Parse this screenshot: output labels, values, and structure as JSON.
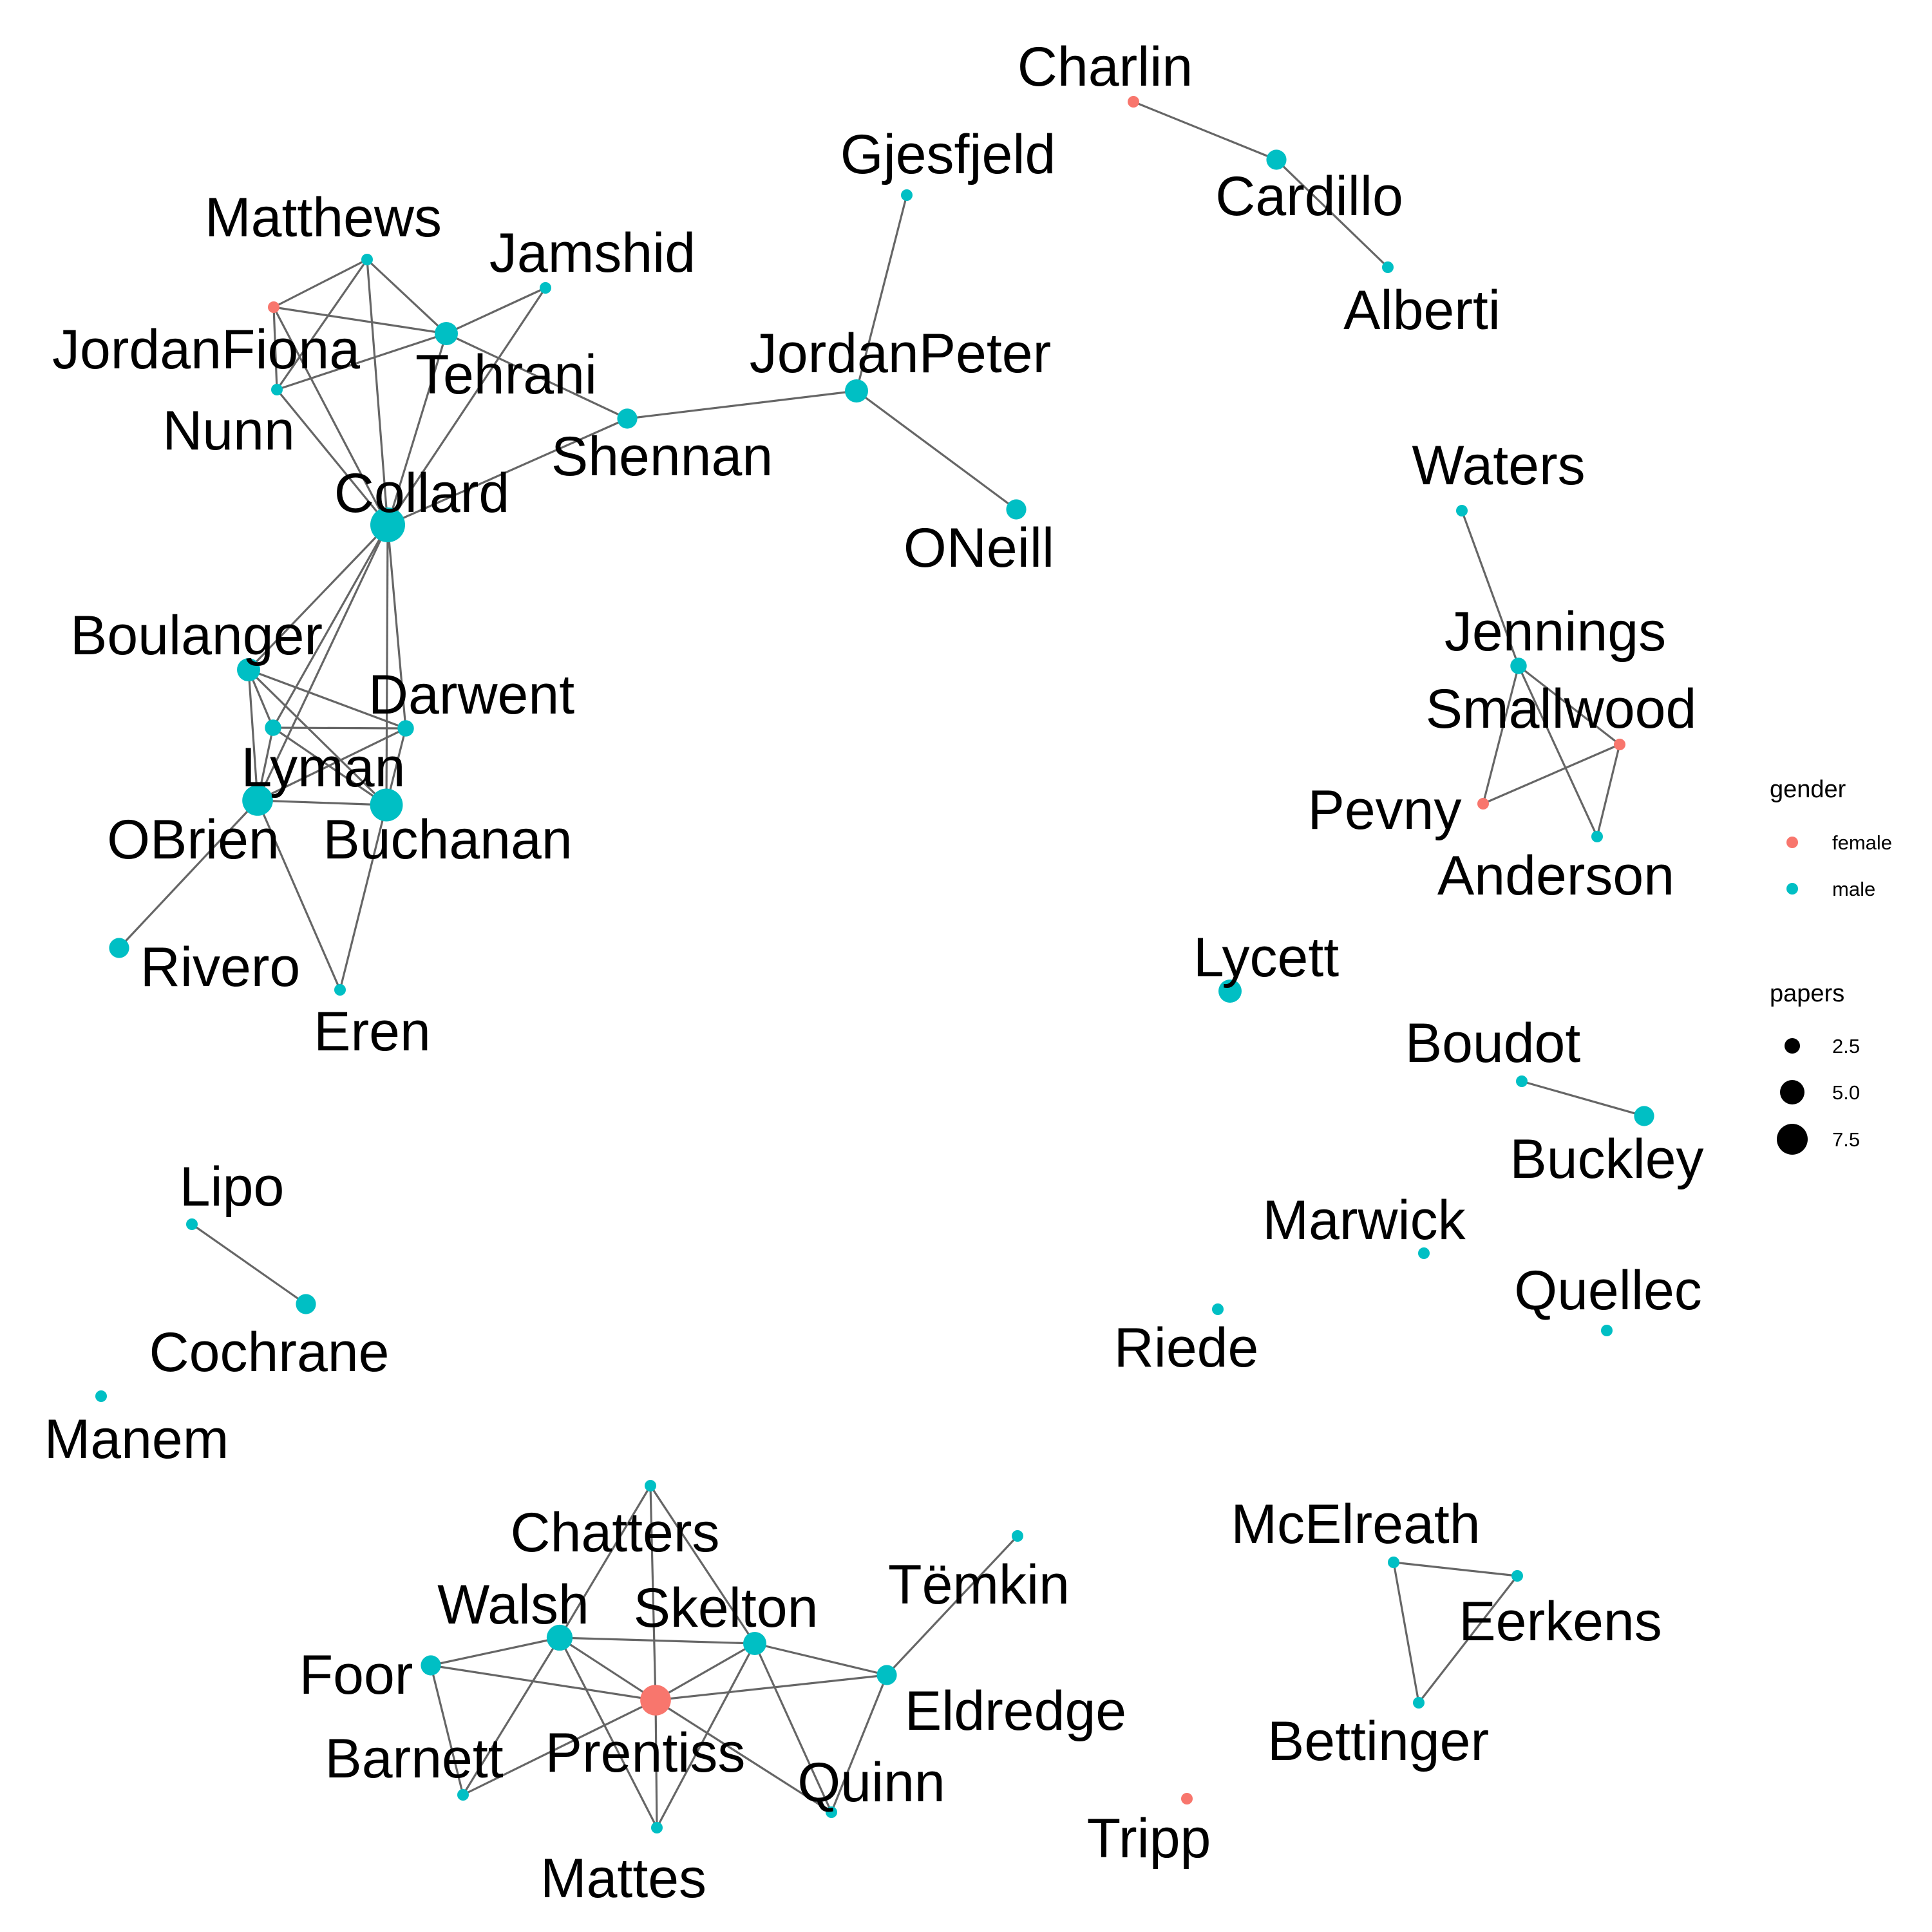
{
  "colors": {
    "female": "#F8766D",
    "male": "#00BFC4",
    "edge": "#666666",
    "size_key": "#000000"
  },
  "nodes": [
    {
      "id": "Charlin",
      "label": "Charlin",
      "gender": "female",
      "papers": 1
    },
    {
      "id": "Cardillo",
      "label": "Cardillo",
      "gender": "male",
      "papers": 3
    },
    {
      "id": "Alberti",
      "label": "Alberti",
      "gender": "male",
      "papers": 1
    },
    {
      "id": "Gjesfjeld",
      "label": "Gjesfjeld",
      "gender": "male",
      "papers": 1
    },
    {
      "id": "Matthews",
      "label": "Matthews",
      "gender": "male",
      "papers": 1
    },
    {
      "id": "Jamshid",
      "label": "Jamshid",
      "gender": "male",
      "papers": 1
    },
    {
      "id": "JordanFiona",
      "label": "JordanFiona",
      "gender": "female",
      "papers": 1
    },
    {
      "id": "Tehrani",
      "label": "Tehrani",
      "gender": "male",
      "papers": 4
    },
    {
      "id": "Nunn",
      "label": "Nunn",
      "gender": "male",
      "papers": 1
    },
    {
      "id": "JordanPeter",
      "label": "JordanPeter",
      "gender": "male",
      "papers": 4
    },
    {
      "id": "Shennan",
      "label": "Shennan",
      "gender": "male",
      "papers": 3
    },
    {
      "id": "Collard",
      "label": "Collard",
      "gender": "male",
      "papers": 9
    },
    {
      "id": "ONeill",
      "label": "ONeill",
      "gender": "male",
      "papers": 3
    },
    {
      "id": "Waters",
      "label": "Waters",
      "gender": "male",
      "papers": 1
    },
    {
      "id": "Boulanger",
      "label": "Boulanger",
      "gender": "male",
      "papers": 4
    },
    {
      "id": "Darwent",
      "label": "Darwent",
      "gender": "male",
      "papers": 2
    },
    {
      "id": "Lyman",
      "label": "Lyman",
      "gender": "male",
      "papers": 2
    },
    {
      "id": "OBrien",
      "label": "OBrien",
      "gender": "male",
      "papers": 7
    },
    {
      "id": "Buchanan",
      "label": "Buchanan",
      "gender": "male",
      "papers": 8
    },
    {
      "id": "Jennings",
      "label": "Jennings",
      "gender": "male",
      "papers": 2
    },
    {
      "id": "Smallwood",
      "label": "Smallwood",
      "gender": "female",
      "papers": 1
    },
    {
      "id": "Pevny",
      "label": "Pevny",
      "gender": "female",
      "papers": 1
    },
    {
      "id": "Anderson",
      "label": "Anderson",
      "gender": "male",
      "papers": 1
    },
    {
      "id": "Rivero",
      "label": "Rivero",
      "gender": "male",
      "papers": 3
    },
    {
      "id": "Eren",
      "label": "Eren",
      "gender": "male",
      "papers": 1
    },
    {
      "id": "Lycett",
      "label": "Lycett",
      "gender": "male",
      "papers": 4
    },
    {
      "id": "Boudot",
      "label": "Boudot",
      "gender": "male",
      "papers": 1
    },
    {
      "id": "Buckley",
      "label": "Buckley",
      "gender": "male",
      "papers": 3
    },
    {
      "id": "Lipo",
      "label": "Lipo",
      "gender": "male",
      "papers": 1
    },
    {
      "id": "Marwick",
      "label": "Marwick",
      "gender": "male",
      "papers": 1
    },
    {
      "id": "Cochrane",
      "label": "Cochrane",
      "gender": "male",
      "papers": 3
    },
    {
      "id": "Quellec",
      "label": "Quellec",
      "gender": "male",
      "papers": 1
    },
    {
      "id": "Riede",
      "label": "Riede",
      "gender": "male",
      "papers": 1
    },
    {
      "id": "Manem",
      "label": "Manem",
      "gender": "male",
      "papers": 1
    },
    {
      "id": "Chatters",
      "label": "Chatters",
      "gender": "male",
      "papers": 1
    },
    {
      "id": "McElreath",
      "label": "McElreath",
      "gender": "male",
      "papers": 1
    },
    {
      "id": "Temkin",
      "label": "Tëmkin",
      "gender": "male",
      "papers": 1
    },
    {
      "id": "Eerkens",
      "label": "Eerkens",
      "gender": "male",
      "papers": 1
    },
    {
      "id": "Walsh",
      "label": "Walsh",
      "gender": "male",
      "papers": 5
    },
    {
      "id": "Skelton",
      "label": "Skelton",
      "gender": "male",
      "papers": 4
    },
    {
      "id": "Foor",
      "label": "Foor",
      "gender": "male",
      "papers": 3
    },
    {
      "id": "Eldredge",
      "label": "Eldredge",
      "gender": "male",
      "papers": 3
    },
    {
      "id": "Prentiss",
      "label": "Prentiss",
      "gender": "female",
      "papers": 7
    },
    {
      "id": "Barnett",
      "label": "Barnett",
      "gender": "male",
      "papers": 1
    },
    {
      "id": "Quinn",
      "label": "Quinn",
      "gender": "male",
      "papers": 1
    },
    {
      "id": "Bettinger",
      "label": "Bettinger",
      "gender": "male",
      "papers": 1
    },
    {
      "id": "Tripp",
      "label": "Tripp",
      "gender": "female",
      "papers": 1
    },
    {
      "id": "Mattes",
      "label": "Mattes",
      "gender": "male",
      "papers": 1
    }
  ],
  "edges": [
    [
      "Charlin",
      "Cardillo"
    ],
    [
      "Cardillo",
      "Alberti"
    ],
    [
      "Gjesfjeld",
      "JordanPeter"
    ],
    [
      "JordanPeter",
      "Shennan"
    ],
    [
      "JordanPeter",
      "ONeill"
    ],
    [
      "Shennan",
      "Collard"
    ],
    [
      "Shennan",
      "Tehrani"
    ],
    [
      "JordanFiona",
      "Matthews"
    ],
    [
      "JordanFiona",
      "Tehrani"
    ],
    [
      "JordanFiona",
      "Nunn"
    ],
    [
      "JordanFiona",
      "Collard"
    ],
    [
      "Matthews",
      "Tehrani"
    ],
    [
      "Matthews",
      "Nunn"
    ],
    [
      "Matthews",
      "Collard"
    ],
    [
      "Jamshid",
      "Tehrani"
    ],
    [
      "Jamshid",
      "Collard"
    ],
    [
      "Nunn",
      "Tehrani"
    ],
    [
      "Nunn",
      "Collard"
    ],
    [
      "Tehrani",
      "Collard"
    ],
    [
      "Collard",
      "Boulanger"
    ],
    [
      "Collard",
      "Lyman"
    ],
    [
      "Collard",
      "Darwent"
    ],
    [
      "Collard",
      "OBrien"
    ],
    [
      "Collard",
      "Buchanan"
    ],
    [
      "Boulanger",
      "Lyman"
    ],
    [
      "Boulanger",
      "Darwent"
    ],
    [
      "Boulanger",
      "OBrien"
    ],
    [
      "Boulanger",
      "Buchanan"
    ],
    [
      "Lyman",
      "Darwent"
    ],
    [
      "Lyman",
      "OBrien"
    ],
    [
      "Lyman",
      "Buchanan"
    ],
    [
      "Darwent",
      "OBrien"
    ],
    [
      "Darwent",
      "Buchanan"
    ],
    [
      "OBrien",
      "Buchanan"
    ],
    [
      "OBrien",
      "Rivero"
    ],
    [
      "OBrien",
      "Eren"
    ],
    [
      "Buchanan",
      "Eren"
    ],
    [
      "Waters",
      "Jennings"
    ],
    [
      "Jennings",
      "Smallwood"
    ],
    [
      "Jennings",
      "Pevny"
    ],
    [
      "Jennings",
      "Anderson"
    ],
    [
      "Smallwood",
      "Pevny"
    ],
    [
      "Smallwood",
      "Anderson"
    ],
    [
      "Boudot",
      "Buckley"
    ],
    [
      "Lipo",
      "Cochrane"
    ],
    [
      "McElreath",
      "Eerkens"
    ],
    [
      "McElreath",
      "Bettinger"
    ],
    [
      "Eerkens",
      "Bettinger"
    ],
    [
      "Chatters",
      "Walsh"
    ],
    [
      "Chatters",
      "Prentiss"
    ],
    [
      "Chatters",
      "Skelton"
    ],
    [
      "Walsh",
      "Foor"
    ],
    [
      "Walsh",
      "Skelton"
    ],
    [
      "Walsh",
      "Prentiss"
    ],
    [
      "Walsh",
      "Barnett"
    ],
    [
      "Walsh",
      "Mattes"
    ],
    [
      "Foor",
      "Prentiss"
    ],
    [
      "Foor",
      "Barnett"
    ],
    [
      "Skelton",
      "Prentiss"
    ],
    [
      "Skelton",
      "Eldredge"
    ],
    [
      "Skelton",
      "Quinn"
    ],
    [
      "Skelton",
      "Mattes"
    ],
    [
      "Prentiss",
      "Eldredge"
    ],
    [
      "Prentiss",
      "Barnett"
    ],
    [
      "Prentiss",
      "Mattes"
    ],
    [
      "Prentiss",
      "Quinn"
    ],
    [
      "Eldredge",
      "Temkin"
    ],
    [
      "Eldredge",
      "Quinn"
    ]
  ],
  "legend": {
    "gender": {
      "title": "gender",
      "items": [
        {
          "label": "female",
          "key": "female"
        },
        {
          "label": "male",
          "key": "male"
        }
      ]
    },
    "papers": {
      "title": "papers",
      "items": [
        {
          "label": "2.5",
          "value": 2.5
        },
        {
          "label": "5.0",
          "value": 5.0
        },
        {
          "label": "7.5",
          "value": 7.5
        }
      ]
    }
  }
}
